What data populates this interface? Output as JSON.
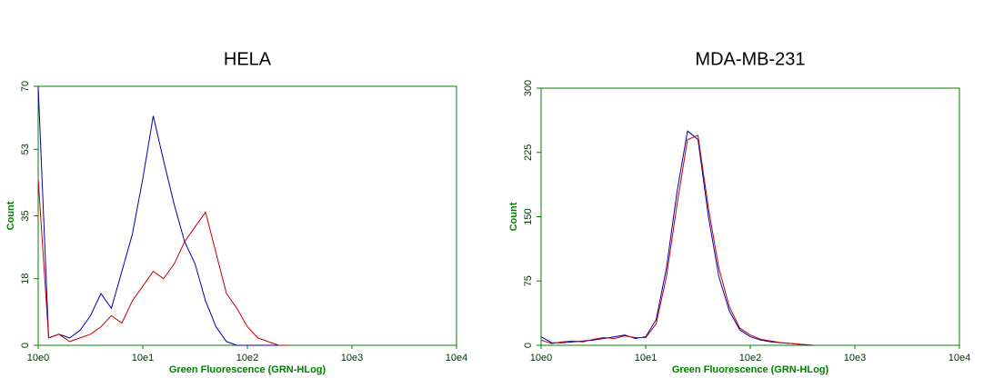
{
  "chart_data": [
    {
      "type": "line",
      "title": "HELA",
      "x_label": "Green Fluorescence (GRN-HLog)",
      "y_label": "Count",
      "xscale": "log",
      "xlim": [
        1,
        10000
      ],
      "ylim": [
        0,
        70
      ],
      "xticks": [
        {
          "value": 1,
          "label": "10e0"
        },
        {
          "value": 10,
          "label": "10e1"
        },
        {
          "value": 100,
          "label": "10e2"
        },
        {
          "value": 1000,
          "label": "10e3"
        },
        {
          "value": 10000,
          "label": "10e4"
        }
      ],
      "yticks": [
        0,
        18,
        35,
        53,
        70
      ],
      "x": [
        1,
        1.26,
        1.58,
        2,
        2.51,
        3.16,
        3.98,
        5.01,
        6.31,
        7.94,
        10,
        12.6,
        15.8,
        20,
        25.1,
        31.6,
        39.8,
        50.1,
        63.1,
        79.4,
        100,
        126,
        158,
        200,
        251
      ],
      "series": [
        {
          "color": "#0000b0",
          "values": [
            70,
            2,
            3,
            2,
            4,
            8,
            14,
            10,
            20,
            30,
            45,
            62,
            50,
            38,
            28,
            22,
            12,
            5,
            1,
            0,
            0,
            0,
            0,
            0,
            0
          ]
        },
        {
          "color": "#c00000",
          "values": [
            45,
            2,
            3,
            1,
            2,
            3,
            5,
            8,
            6,
            12,
            16,
            20,
            18,
            22,
            28,
            32,
            36,
            25,
            14,
            10,
            5,
            2,
            1,
            0,
            0
          ]
        }
      ]
    },
    {
      "type": "line",
      "title": "MDA-MB-231",
      "x_label": "Green Fluorescence (GRN-HLog)",
      "y_label": "Count",
      "xscale": "log",
      "xlim": [
        1,
        10000
      ],
      "ylim": [
        0,
        300
      ],
      "xticks": [
        {
          "value": 1,
          "label": "10e0"
        },
        {
          "value": 10,
          "label": "10e1"
        },
        {
          "value": 100,
          "label": "10e2"
        },
        {
          "value": 1000,
          "label": "10e3"
        },
        {
          "value": 10000,
          "label": "10e4"
        }
      ],
      "yticks": [
        0,
        75,
        150,
        225,
        300
      ],
      "x": [
        1,
        1.26,
        1.58,
        2,
        2.51,
        3.16,
        3.98,
        5.01,
        6.31,
        7.94,
        10,
        12.6,
        15.8,
        20,
        25.1,
        31.6,
        39.8,
        50.1,
        63.1,
        79.4,
        100,
        126,
        158,
        200,
        251,
        316,
        398
      ],
      "series": [
        {
          "color": "#0000b0",
          "values": [
            10,
            3,
            3,
            4,
            5,
            6,
            8,
            10,
            12,
            8,
            10,
            30,
            90,
            180,
            250,
            240,
            150,
            80,
            40,
            18,
            10,
            6,
            4,
            3,
            2,
            1,
            0
          ]
        },
        {
          "color": "#c00000",
          "values": [
            6,
            2,
            4,
            5,
            4,
            7,
            9,
            8,
            11,
            9,
            9,
            25,
            80,
            165,
            240,
            245,
            160,
            90,
            45,
            20,
            12,
            7,
            5,
            3,
            2,
            1,
            0
          ]
        }
      ]
    }
  ]
}
